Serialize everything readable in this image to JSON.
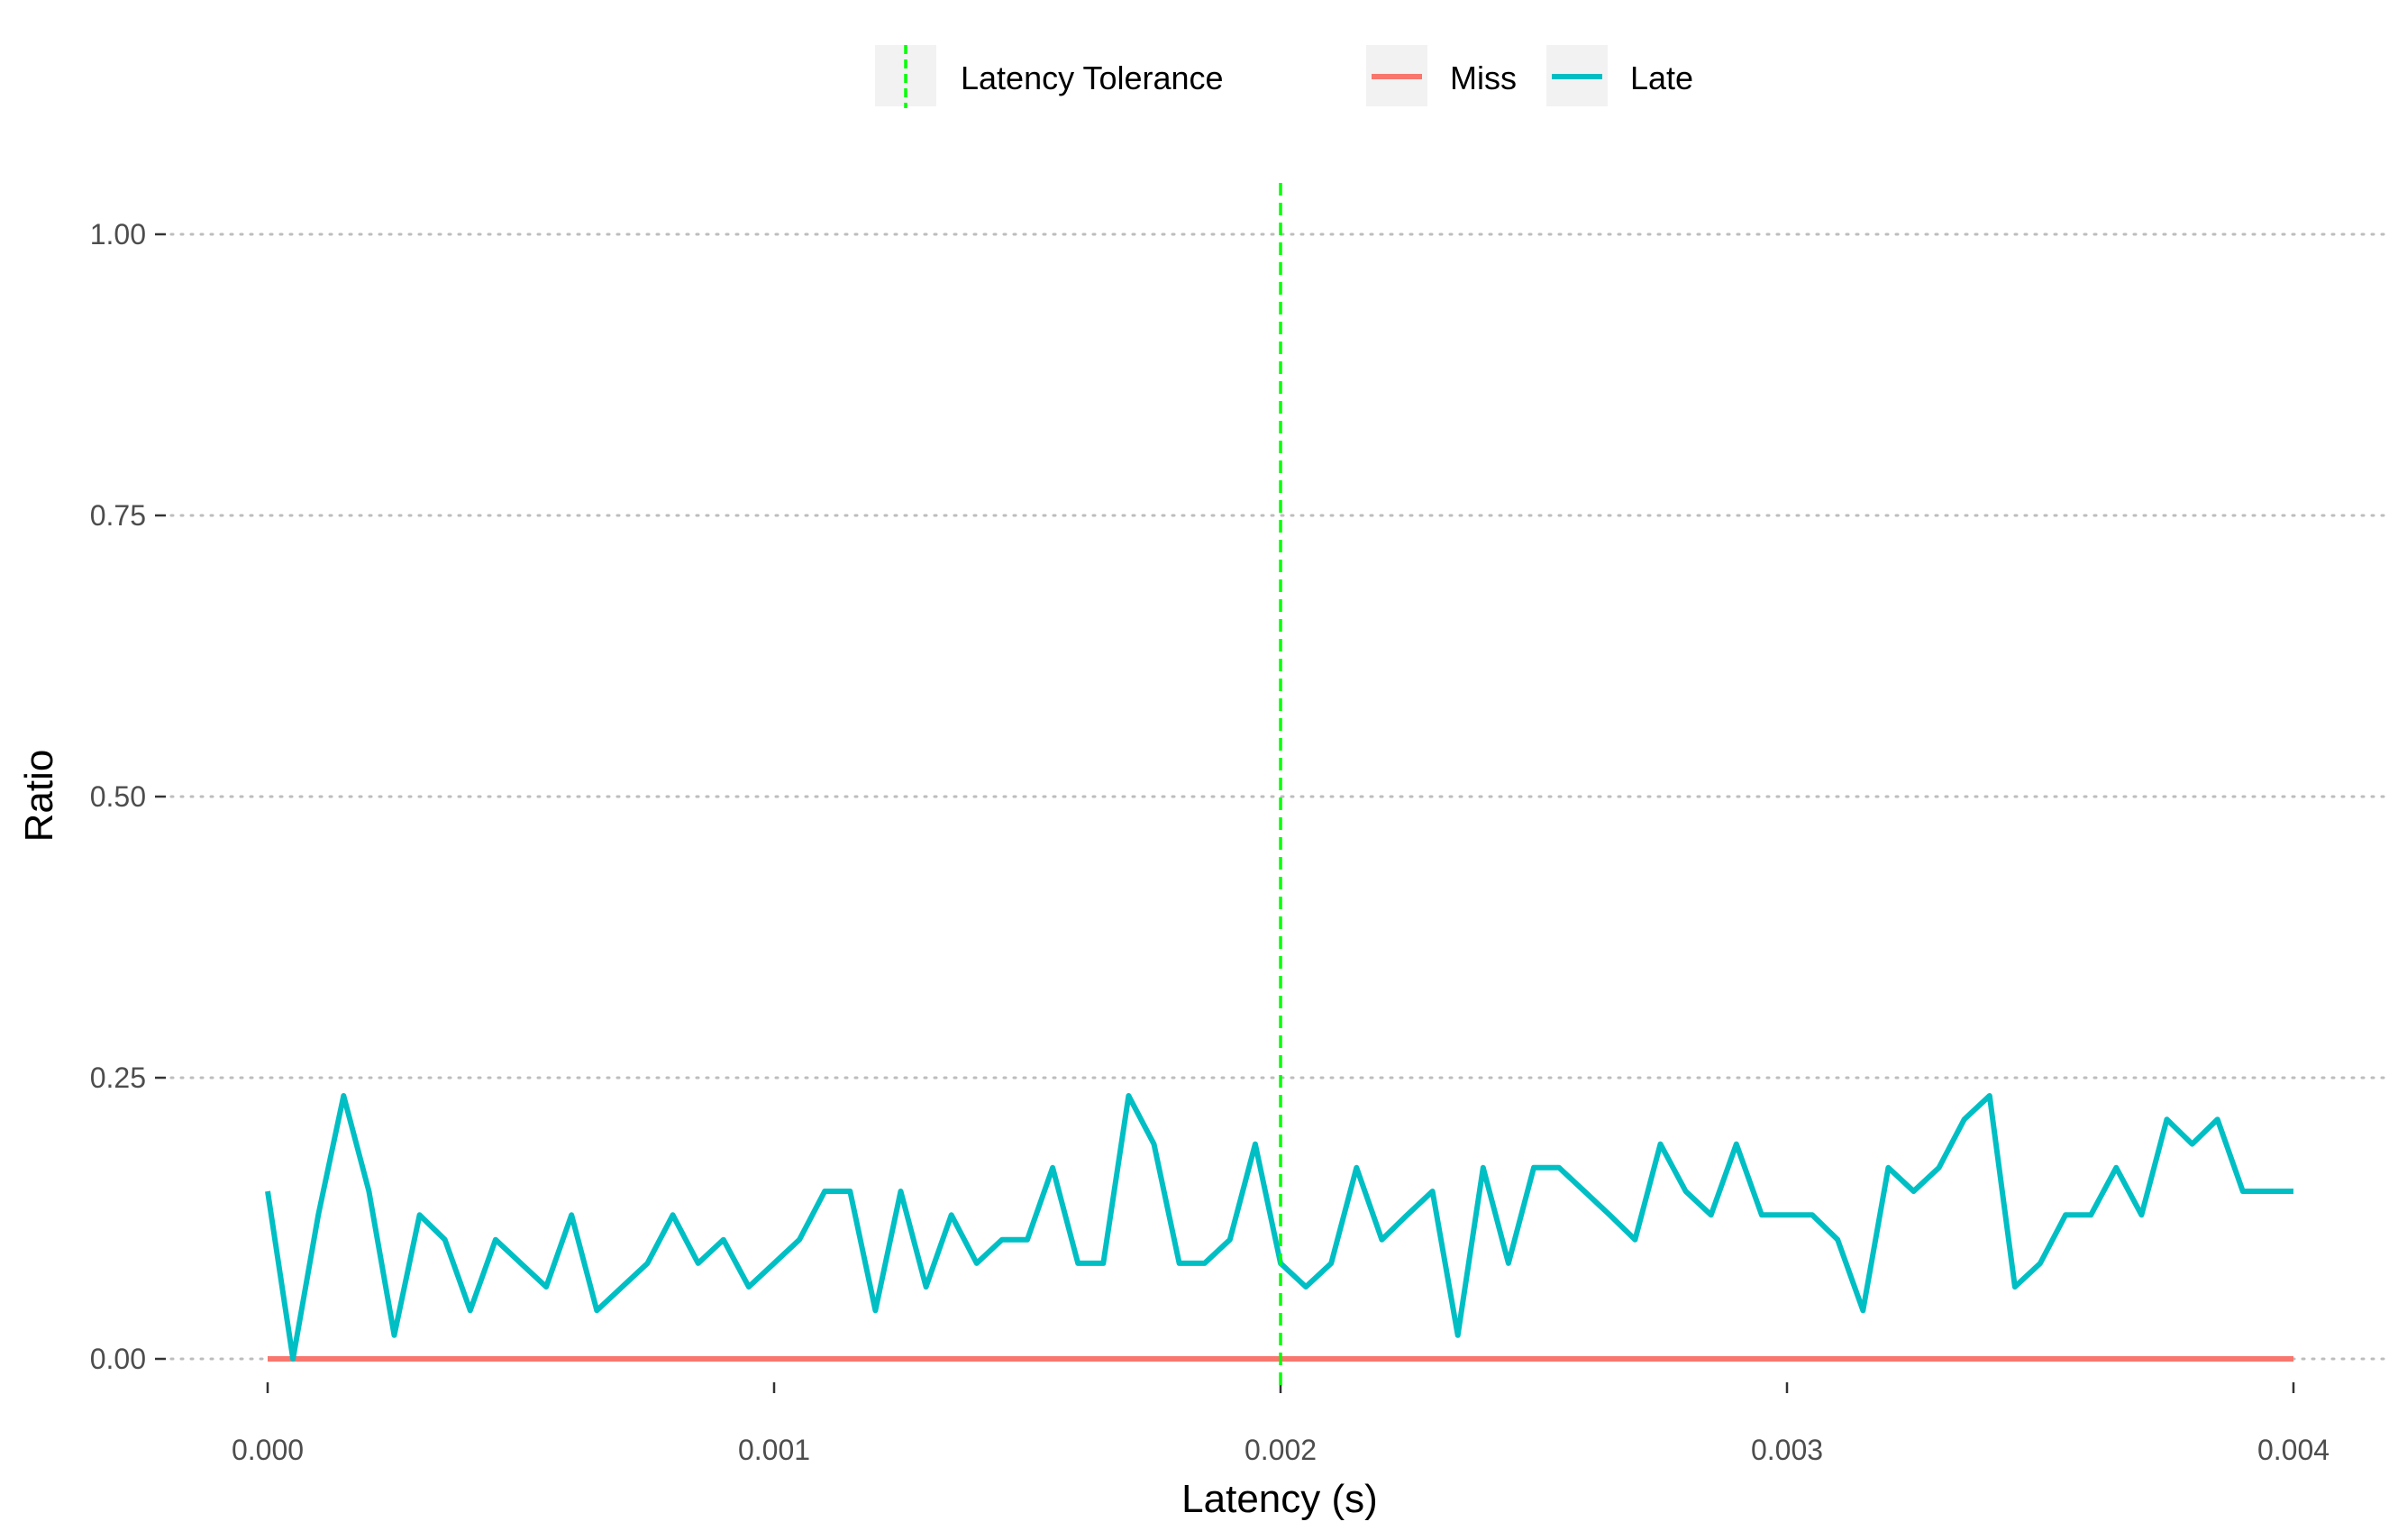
{
  "chart_data": {
    "type": "line",
    "title": "",
    "xlabel": "Latency (s)",
    "ylabel": "Ratio",
    "xlim": [
      0,
      0.004
    ],
    "ylim": [
      0,
      1
    ],
    "x_ticks": [
      0,
      0.001,
      0.002,
      0.003,
      0.004
    ],
    "x_tick_labels": [
      "0.000",
      "0.001",
      "0.002",
      "0.003",
      "0.004"
    ],
    "y_ticks": [
      0,
      0.25,
      0.5,
      0.75,
      1.0
    ],
    "y_tick_labels": [
      "0.00",
      "0.25",
      "0.50",
      "0.75",
      "1.00"
    ],
    "grid": "horizontal-dotted",
    "legend_position": "top",
    "legend": {
      "tolerance_label": "Latency Tolerance",
      "miss_label": "Miss",
      "late_label": "Late"
    },
    "tolerance_line": {
      "x": 0.002,
      "color": "#00ff00"
    },
    "x": [
      0.0,
      5e-05,
      0.0001,
      0.00015,
      0.0002,
      0.00025,
      0.0003,
      0.00035,
      0.0004,
      0.00045,
      0.0005,
      0.00055,
      0.0006,
      0.00065,
      0.0007,
      0.00075,
      0.0008,
      0.00085,
      0.0009,
      0.00095,
      0.001,
      0.00105,
      0.0011,
      0.00115,
      0.0012,
      0.00125,
      0.0013,
      0.00135,
      0.0014,
      0.00145,
      0.0015,
      0.00155,
      0.0016,
      0.00165,
      0.0017,
      0.00175,
      0.0018,
      0.00185,
      0.0019,
      0.00195,
      0.002,
      0.00205,
      0.0021,
      0.00215,
      0.0022,
      0.00225,
      0.0023,
      0.00235,
      0.0024,
      0.00245,
      0.0025,
      0.00255,
      0.0026,
      0.00265,
      0.0027,
      0.00275,
      0.0028,
      0.00285,
      0.0029,
      0.00295,
      0.003,
      0.00305,
      0.0031,
      0.00315,
      0.0032,
      0.00325,
      0.0033,
      0.00335,
      0.0034,
      0.00345,
      0.0035,
      0.00355,
      0.0036,
      0.00365,
      0.0037,
      0.00375,
      0.0038,
      0.00385,
      0.0039,
      0.00395,
      0.004
    ],
    "series": [
      {
        "name": "Miss",
        "color": "#f8766d",
        "values": [
          0,
          0,
          0,
          0,
          0,
          0,
          0,
          0,
          0,
          0,
          0,
          0,
          0,
          0,
          0,
          0,
          0,
          0,
          0,
          0,
          0,
          0,
          0,
          0,
          0,
          0,
          0,
          0,
          0,
          0,
          0,
          0,
          0,
          0,
          0,
          0,
          0,
          0,
          0,
          0,
          0,
          0,
          0,
          0,
          0,
          0,
          0,
          0,
          0,
          0,
          0,
          0,
          0,
          0,
          0,
          0,
          0,
          0,
          0,
          0,
          0,
          0,
          0,
          0,
          0,
          0,
          0,
          0,
          0,
          0,
          0,
          0,
          0,
          0,
          0,
          0,
          0,
          0,
          0,
          0,
          0
        ]
      },
      {
        "name": "Late",
        "color": "#00bfc4",
        "values": [
          0.149,
          0.0,
          0.128,
          0.234,
          0.149,
          0.021,
          0.128,
          0.106,
          0.043,
          0.106,
          0.085,
          0.064,
          0.128,
          0.043,
          0.064,
          0.085,
          0.128,
          0.085,
          0.106,
          0.064,
          0.085,
          0.106,
          0.149,
          0.149,
          0.043,
          0.149,
          0.064,
          0.128,
          0.085,
          0.106,
          0.106,
          0.17,
          0.085,
          0.085,
          0.234,
          0.191,
          0.085,
          0.085,
          0.106,
          0.191,
          0.085,
          0.064,
          0.085,
          0.17,
          0.106,
          0.128,
          0.149,
          0.021,
          0.17,
          0.085,
          0.17,
          0.17,
          0.149,
          0.128,
          0.106,
          0.191,
          0.149,
          0.128,
          0.191,
          0.128,
          0.128,
          0.128,
          0.106,
          0.043,
          0.17,
          0.149,
          0.17,
          0.213,
          0.234,
          0.064,
          0.085,
          0.128,
          0.128,
          0.17,
          0.128,
          0.213,
          0.191,
          0.213,
          0.149,
          0.149,
          0.149
        ]
      }
    ]
  }
}
